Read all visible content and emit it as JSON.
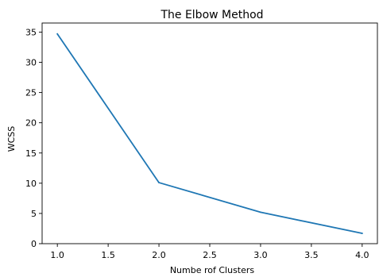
{
  "chart_data": {
    "type": "line",
    "title": "The Elbow Method",
    "xlabel": "Numbe rof Clusters",
    "ylabel": "WCSS",
    "xlim": [
      0.85,
      4.15
    ],
    "ylim": [
      0,
      36.5
    ],
    "x_ticks": [
      1.0,
      1.5,
      2.0,
      2.5,
      3.0,
      3.5,
      4.0
    ],
    "x_tick_labels": [
      "1.0",
      "1.5",
      "2.0",
      "2.5",
      "3.0",
      "3.5",
      "4.0"
    ],
    "y_ticks": [
      0,
      5,
      10,
      15,
      20,
      25,
      30,
      35
    ],
    "y_tick_labels": [
      "0",
      "5",
      "10",
      "15",
      "20",
      "25",
      "30",
      "35"
    ],
    "grid": false,
    "series": [
      {
        "color": "#1f77b4",
        "x": [
          1,
          2,
          3,
          4
        ],
        "y": [
          34.7,
          10.1,
          5.2,
          1.7
        ]
      }
    ]
  }
}
